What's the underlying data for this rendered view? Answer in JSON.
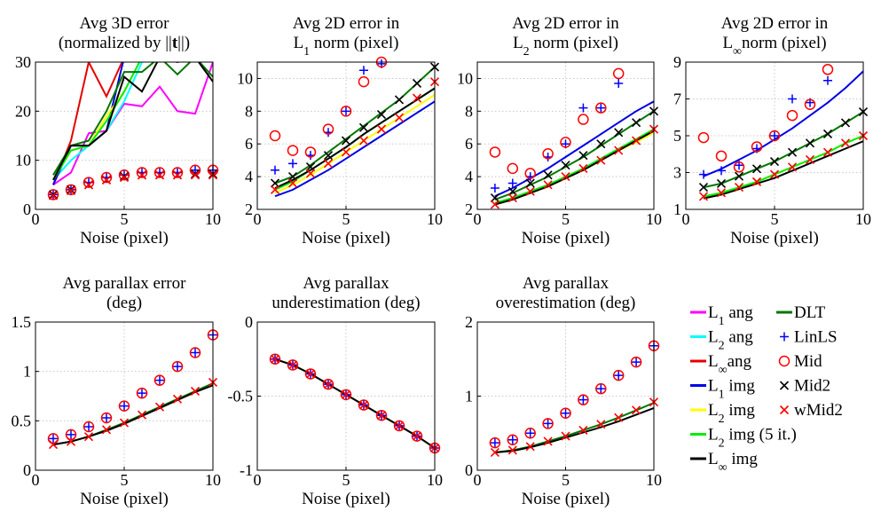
{
  "chart_data": [
    {
      "id": "p1",
      "type": "line",
      "title": [
        "Avg 3D error",
        "(normalized by ||t||)"
      ],
      "xlabel": "Noise (pixel)",
      "ylabel": "",
      "xlim": [
        0,
        10
      ],
      "ylim": [
        0,
        30
      ],
      "xticks": [
        0,
        5,
        10
      ],
      "yticks": [
        0,
        10,
        20,
        30
      ],
      "grid": true,
      "x": [
        1,
        2,
        3,
        4,
        5,
        6,
        7,
        8,
        9,
        10
      ],
      "series": [
        {
          "ref": "l1ang",
          "values": [
            5,
            7.5,
            15.5,
            16,
            21.5,
            21,
            25,
            20,
            19.5,
            30
          ]
        },
        {
          "ref": "l2ang",
          "values": [
            6,
            10,
            13,
            16,
            22,
            30,
            31,
            31,
            31,
            31
          ]
        },
        {
          "ref": "linfang",
          "values": [
            5,
            14,
            30,
            23,
            31,
            31,
            31,
            31,
            31,
            31
          ]
        },
        {
          "ref": "l1img",
          "values": [
            5,
            13,
            13,
            16,
            31,
            31,
            31,
            31,
            31,
            31
          ]
        },
        {
          "ref": "l2img",
          "values": [
            6,
            12,
            13,
            19,
            24,
            31,
            31,
            31,
            31,
            31
          ]
        },
        {
          "ref": "l2img5",
          "values": [
            6,
            12,
            13,
            18,
            24,
            31,
            31,
            31,
            31,
            31
          ]
        },
        {
          "ref": "dlt",
          "values": [
            7,
            13,
            14,
            20,
            28,
            28,
            31,
            27.5,
            31,
            27
          ]
        },
        {
          "ref": "linfimg",
          "values": [
            6,
            13,
            13,
            16,
            27,
            24,
            31,
            30,
            31,
            26
          ]
        },
        {
          "ref": "linls",
          "values": [
            3,
            4,
            5.5,
            6.5,
            7,
            7.5,
            7.5,
            7.5,
            8,
            8
          ]
        },
        {
          "ref": "mid",
          "values": [
            3,
            4,
            5.5,
            6.5,
            7,
            7.5,
            7.5,
            7.5,
            8,
            8
          ]
        },
        {
          "ref": "mid2",
          "values": [
            3,
            4,
            5,
            6,
            6.7,
            7,
            7,
            7,
            7.2,
            7.2
          ]
        },
        {
          "ref": "wmid2",
          "values": [
            2.8,
            3.8,
            5,
            6,
            6.5,
            7,
            7,
            7,
            7,
            7
          ]
        }
      ]
    },
    {
      "id": "p2",
      "type": "line",
      "title": [
        "Avg 2D error in",
        "L1 norm (pixel)"
      ],
      "xlabel": "Noise (pixel)",
      "ylabel": "",
      "xlim": [
        0,
        10
      ],
      "ylim": [
        2,
        11
      ],
      "xticks": [
        0,
        5,
        10
      ],
      "yticks": [
        2,
        4,
        6,
        8,
        10
      ],
      "grid": true,
      "x": [
        1,
        2,
        3,
        4,
        5,
        6,
        7,
        8,
        9,
        10
      ],
      "series": [
        {
          "ref": "l1img",
          "values": [
            2.8,
            3.2,
            3.8,
            4.4,
            5.1,
            5.8,
            6.5,
            7.2,
            7.9,
            8.6
          ]
        },
        {
          "ref": "l2img",
          "values": [
            3.0,
            3.5,
            4.1,
            4.8,
            5.5,
            6.2,
            6.9,
            7.6,
            8.3,
            9.0
          ]
        },
        {
          "ref": "l2img5",
          "values": [
            3.2,
            3.7,
            4.4,
            5.1,
            5.8,
            6.6,
            7.3,
            8.0,
            8.7,
            9.4
          ]
        },
        {
          "ref": "dlt",
          "values": [
            3.6,
            4.0,
            4.7,
            5.5,
            6.3,
            7.1,
            7.9,
            8.7,
            9.7,
            10.7
          ]
        },
        {
          "ref": "linfimg",
          "values": [
            3.3,
            3.8,
            4.4,
            5.1,
            5.8,
            6.6,
            7.3,
            8.0,
            8.7,
            9.4
          ]
        },
        {
          "ref": "linls",
          "values": [
            4.4,
            4.8,
            5.3,
            6.7,
            8.0,
            10.5,
            10.9,
            null,
            null,
            null
          ]
        },
        {
          "ref": "mid",
          "values": [
            6.5,
            5.6,
            5.5,
            6.9,
            8.0,
            9.8,
            11.0,
            null,
            null,
            null
          ]
        },
        {
          "ref": "mid2",
          "values": [
            3.6,
            4.0,
            4.6,
            5.3,
            6.2,
            7.0,
            7.8,
            8.7,
            9.7,
            10.7
          ]
        },
        {
          "ref": "wmid2",
          "values": [
            3.2,
            3.6,
            4.2,
            4.8,
            5.5,
            6.2,
            6.9,
            7.6,
            8.8,
            9.8
          ]
        }
      ]
    },
    {
      "id": "p3",
      "type": "line",
      "title": [
        "Avg 2D error in",
        "L2 norm (pixel)"
      ],
      "xlabel": "Noise (pixel)",
      "ylabel": "",
      "xlim": [
        0,
        10
      ],
      "ylim": [
        2,
        11
      ],
      "xticks": [
        0,
        5,
        10
      ],
      "yticks": [
        2,
        4,
        6,
        8,
        10
      ],
      "grid": true,
      "x": [
        1,
        2,
        3,
        4,
        5,
        6,
        7,
        8,
        9,
        10
      ],
      "series": [
        {
          "ref": "l1img",
          "values": [
            2.8,
            3.3,
            3.9,
            4.5,
            5.2,
            5.9,
            6.6,
            7.3,
            8.0,
            8.6
          ]
        },
        {
          "ref": "l2img",
          "values": [
            2.3,
            2.6,
            3.0,
            3.4,
            3.9,
            4.4,
            5.0,
            5.6,
            6.1,
            6.7
          ]
        },
        {
          "ref": "l2img5",
          "values": [
            2.4,
            2.7,
            3.1,
            3.5,
            4.0,
            4.5,
            5.1,
            5.7,
            6.3,
            6.9
          ]
        },
        {
          "ref": "dlt",
          "values": [
            2.6,
            3.0,
            3.5,
            4.0,
            4.6,
            5.2,
            5.9,
            6.6,
            7.3,
            8.0
          ]
        },
        {
          "ref": "linfimg",
          "values": [
            2.3,
            2.6,
            3.0,
            3.4,
            3.9,
            4.4,
            5.0,
            5.6,
            6.2,
            6.8
          ]
        },
        {
          "ref": "linls",
          "values": [
            3.3,
            3.6,
            4.0,
            5.2,
            6.0,
            8.2,
            8.2,
            9.7,
            null,
            null
          ]
        },
        {
          "ref": "mid",
          "values": [
            5.5,
            4.5,
            4.2,
            5.4,
            6.1,
            7.5,
            8.2,
            10.3,
            null,
            null
          ]
        },
        {
          "ref": "mid2",
          "values": [
            2.7,
            3.1,
            3.6,
            4.1,
            4.7,
            5.3,
            6.0,
            6.7,
            7.3,
            8.0
          ]
        },
        {
          "ref": "wmid2",
          "values": [
            2.3,
            2.7,
            3.1,
            3.5,
            4.0,
            4.5,
            5.0,
            5.6,
            6.2,
            6.9
          ]
        }
      ]
    },
    {
      "id": "p4",
      "type": "line",
      "title": [
        "Avg 2D error in",
        "L∞norm (pixel)"
      ],
      "xlabel": "Noise (pixel)",
      "ylabel": "",
      "xlim": [
        0,
        10
      ],
      "ylim": [
        1,
        9
      ],
      "xticks": [
        0,
        5,
        10
      ],
      "yticks": [
        1,
        3,
        5,
        7,
        9
      ],
      "grid": true,
      "x": [
        1,
        2,
        3,
        4,
        5,
        6,
        7,
        8,
        9,
        10
      ],
      "series": [
        {
          "ref": "l1img",
          "values": [
            2.8,
            3.2,
            3.7,
            4.2,
            4.8,
            5.4,
            6.1,
            6.8,
            7.6,
            8.5
          ]
        },
        {
          "ref": "l2img",
          "values": [
            1.7,
            1.9,
            2.2,
            2.5,
            2.9,
            3.3,
            3.7,
            4.1,
            4.6,
            5.0
          ]
        },
        {
          "ref": "l2img5",
          "values": [
            1.7,
            1.9,
            2.2,
            2.5,
            2.9,
            3.3,
            3.7,
            4.1,
            4.6,
            5.0
          ]
        },
        {
          "ref": "dlt",
          "values": [
            2.2,
            2.4,
            2.8,
            3.2,
            3.6,
            4.1,
            4.6,
            5.1,
            5.7,
            6.3
          ]
        },
        {
          "ref": "linfimg",
          "values": [
            1.6,
            1.8,
            2.1,
            2.4,
            2.7,
            3.1,
            3.5,
            3.9,
            4.3,
            4.7
          ]
        },
        {
          "ref": "linls",
          "values": [
            2.9,
            3.1,
            3.4,
            4.3,
            5.0,
            7.0,
            6.8,
            8.0,
            null,
            null
          ]
        },
        {
          "ref": "mid",
          "values": [
            4.9,
            3.9,
            3.3,
            4.4,
            5.0,
            6.1,
            6.7,
            8.6,
            null,
            null
          ]
        },
        {
          "ref": "mid2",
          "values": [
            2.2,
            2.4,
            2.8,
            3.2,
            3.6,
            4.1,
            4.6,
            5.1,
            5.7,
            6.3
          ]
        },
        {
          "ref": "wmid2",
          "values": [
            1.7,
            1.9,
            2.2,
            2.5,
            2.9,
            3.3,
            3.7,
            4.1,
            4.6,
            5.0
          ]
        }
      ]
    },
    {
      "id": "p5",
      "type": "line",
      "title": [
        "Avg parallax error",
        "(deg)"
      ],
      "xlabel": "Noise (pixel)",
      "ylabel": "",
      "xlim": [
        0,
        10
      ],
      "ylim": [
        0,
        1.5
      ],
      "xticks": [
        0,
        5,
        10
      ],
      "yticks": [
        0,
        0.5,
        1,
        1.5
      ],
      "grid": true,
      "x": [
        1,
        2,
        3,
        4,
        5,
        6,
        7,
        8,
        9,
        10
      ],
      "series": [
        {
          "ref": "dlt",
          "values": [
            0.26,
            0.29,
            0.34,
            0.41,
            0.48,
            0.56,
            0.64,
            0.72,
            0.8,
            0.88
          ]
        },
        {
          "ref": "linfimg",
          "values": [
            0.26,
            0.29,
            0.34,
            0.4,
            0.47,
            0.55,
            0.63,
            0.71,
            0.79,
            0.86
          ]
        },
        {
          "ref": "linls",
          "values": [
            0.32,
            0.36,
            0.44,
            0.53,
            0.65,
            0.78,
            0.91,
            1.05,
            1.19,
            1.37
          ]
        },
        {
          "ref": "mid",
          "values": [
            0.32,
            0.36,
            0.44,
            0.53,
            0.65,
            0.78,
            0.91,
            1.05,
            1.19,
            1.37
          ]
        },
        {
          "ref": "wmid2",
          "values": [
            0.26,
            0.29,
            0.34,
            0.41,
            0.48,
            0.56,
            0.64,
            0.72,
            0.8,
            0.89
          ]
        }
      ]
    },
    {
      "id": "p6",
      "type": "line",
      "title": [
        "Avg parallax",
        "underestimation (deg)"
      ],
      "xlabel": "Noise (pixel)",
      "ylabel": "",
      "xlim": [
        0,
        10
      ],
      "ylim": [
        -1,
        0
      ],
      "xticks": [
        0,
        5,
        10
      ],
      "yticks": [
        -1,
        -0.5,
        0
      ],
      "grid": true,
      "x": [
        1,
        2,
        3,
        4,
        5,
        6,
        7,
        8,
        9,
        10
      ],
      "series": [
        {
          "ref": "dlt",
          "values": [
            -0.25,
            -0.29,
            -0.35,
            -0.42,
            -0.49,
            -0.56,
            -0.63,
            -0.7,
            -0.77,
            -0.85
          ]
        },
        {
          "ref": "linfimg",
          "values": [
            -0.25,
            -0.29,
            -0.35,
            -0.42,
            -0.49,
            -0.56,
            -0.63,
            -0.7,
            -0.77,
            -0.85
          ]
        },
        {
          "ref": "linls",
          "values": [
            -0.25,
            -0.29,
            -0.35,
            -0.42,
            -0.49,
            -0.56,
            -0.63,
            -0.7,
            -0.77,
            -0.85
          ]
        },
        {
          "ref": "mid",
          "values": [
            -0.25,
            -0.29,
            -0.35,
            -0.42,
            -0.49,
            -0.56,
            -0.63,
            -0.7,
            -0.77,
            -0.85
          ]
        },
        {
          "ref": "wmid2",
          "values": [
            -0.25,
            -0.29,
            -0.35,
            -0.42,
            -0.49,
            -0.56,
            -0.63,
            -0.7,
            -0.77,
            -0.85
          ]
        }
      ]
    },
    {
      "id": "p7",
      "type": "line",
      "title": [
        "Avg parallax",
        "overestimation (deg)"
      ],
      "xlabel": "Noise (pixel)",
      "ylabel": "",
      "xlim": [
        0,
        10
      ],
      "ylim": [
        0,
        2
      ],
      "xticks": [
        0,
        5,
        10
      ],
      "yticks": [
        0,
        1,
        2
      ],
      "grid": true,
      "x": [
        1,
        2,
        3,
        4,
        5,
        6,
        7,
        8,
        9,
        10
      ],
      "series": [
        {
          "ref": "dlt",
          "values": [
            0.24,
            0.27,
            0.32,
            0.39,
            0.46,
            0.54,
            0.62,
            0.71,
            0.81,
            0.91
          ]
        },
        {
          "ref": "linfimg",
          "values": [
            0.24,
            0.26,
            0.31,
            0.37,
            0.44,
            0.51,
            0.58,
            0.66,
            0.75,
            0.84
          ]
        },
        {
          "ref": "linls",
          "values": [
            0.37,
            0.41,
            0.5,
            0.63,
            0.77,
            0.95,
            1.1,
            1.28,
            1.46,
            1.68
          ]
        },
        {
          "ref": "mid",
          "values": [
            0.37,
            0.41,
            0.5,
            0.63,
            0.77,
            0.95,
            1.1,
            1.28,
            1.46,
            1.68
          ]
        },
        {
          "ref": "wmid2",
          "values": [
            0.24,
            0.27,
            0.32,
            0.39,
            0.46,
            0.54,
            0.62,
            0.71,
            0.81,
            0.92
          ]
        }
      ]
    }
  ],
  "legend": {
    "placement": "bottom-right",
    "items": [
      {
        "id": "l1ang",
        "label": "L1 ang",
        "color": "#ff00ff",
        "kind": "line"
      },
      {
        "id": "dlt",
        "label": "DLT",
        "color": "#007700",
        "kind": "line"
      },
      {
        "id": "l2ang",
        "label": "L2 ang",
        "color": "#00ffff",
        "kind": "line"
      },
      {
        "id": "linls",
        "label": "LinLS",
        "color": "#0000ff",
        "kind": "plus"
      },
      {
        "id": "linfang",
        "label": "L∞ang",
        "color": "#e60000",
        "kind": "line"
      },
      {
        "id": "mid",
        "label": "Mid",
        "color": "#ff0000",
        "kind": "circle"
      },
      {
        "id": "l1img",
        "label": "L1 img",
        "color": "#0000e6",
        "kind": "line"
      },
      {
        "id": "mid2",
        "label": "Mid2",
        "color": "#000000",
        "kind": "x"
      },
      {
        "id": "l2img",
        "label": "L2 img",
        "color": "#ffff00",
        "kind": "line"
      },
      {
        "id": "wmid2",
        "label": "wMid2",
        "color": "#ff0000",
        "kind": "x"
      },
      {
        "id": "l2img5",
        "label": "L2 img (5 it.)",
        "color": "#00ee00",
        "kind": "line"
      },
      {
        "id": "linfimg",
        "label": "L∞ img",
        "color": "#000000",
        "kind": "line"
      }
    ]
  }
}
